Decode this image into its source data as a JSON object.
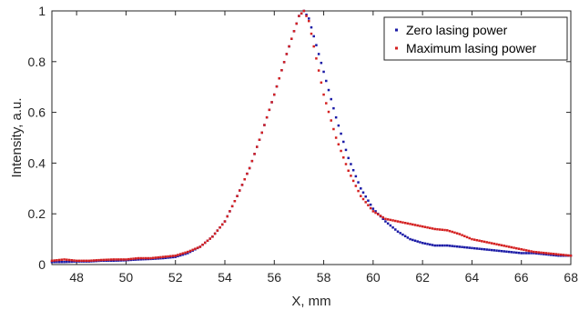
{
  "chart_data": {
    "type": "scatter",
    "title": "",
    "xlabel": "X, mm",
    "ylabel": "Intensity, a.u.",
    "xlim": [
      47,
      68
    ],
    "ylim": [
      0,
      1
    ],
    "xticks": [
      "48",
      "50",
      "52",
      "54",
      "56",
      "58",
      "60",
      "62",
      "64",
      "66",
      "68"
    ],
    "yticks": [
      "0",
      "0.2",
      "0.4",
      "0.6",
      "0.8",
      "1"
    ],
    "grid": false,
    "legend_position": "top-right",
    "series": [
      {
        "name": "Zero lasing power",
        "color": "#1a1aa6",
        "x": [
          47.0,
          47.5,
          48.0,
          48.5,
          49.0,
          49.5,
          50.0,
          50.5,
          51.0,
          51.5,
          52.0,
          52.5,
          53.0,
          53.5,
          54.0,
          54.5,
          55.0,
          55.5,
          56.0,
          56.5,
          56.8,
          57.0,
          57.2,
          57.4,
          57.6,
          58.0,
          58.5,
          59.0,
          59.5,
          60.0,
          60.5,
          61.0,
          61.5,
          62.0,
          62.5,
          63.0,
          63.5,
          64.0,
          64.5,
          65.0,
          65.5,
          66.0,
          66.5,
          67.0,
          67.5,
          68.0
        ],
        "y": [
          0.01,
          0.01,
          0.012,
          0.012,
          0.015,
          0.015,
          0.017,
          0.02,
          0.022,
          0.025,
          0.03,
          0.045,
          0.07,
          0.11,
          0.17,
          0.27,
          0.38,
          0.52,
          0.67,
          0.83,
          0.92,
          0.98,
          1.0,
          0.97,
          0.9,
          0.76,
          0.58,
          0.42,
          0.3,
          0.22,
          0.17,
          0.13,
          0.1,
          0.085,
          0.075,
          0.075,
          0.07,
          0.065,
          0.06,
          0.055,
          0.05,
          0.045,
          0.045,
          0.04,
          0.035,
          0.035
        ]
      },
      {
        "name": "Maximum lasing power",
        "color": "#d42020",
        "x": [
          47.0,
          47.5,
          48.0,
          48.5,
          49.0,
          49.5,
          50.0,
          50.5,
          51.0,
          51.5,
          52.0,
          52.5,
          53.0,
          53.5,
          54.0,
          54.5,
          55.0,
          55.5,
          56.0,
          56.5,
          56.8,
          57.0,
          57.2,
          57.4,
          57.6,
          58.0,
          58.5,
          59.0,
          59.5,
          60.0,
          60.5,
          61.0,
          61.5,
          62.0,
          62.5,
          63.0,
          63.5,
          64.0,
          64.5,
          65.0,
          65.5,
          66.0,
          66.5,
          67.0,
          67.5,
          68.0
        ],
        "y": [
          0.015,
          0.02,
          0.015,
          0.015,
          0.018,
          0.02,
          0.02,
          0.025,
          0.025,
          0.03,
          0.035,
          0.05,
          0.07,
          0.11,
          0.17,
          0.27,
          0.38,
          0.52,
          0.67,
          0.83,
          0.92,
          0.98,
          1.0,
          0.96,
          0.86,
          0.67,
          0.5,
          0.37,
          0.27,
          0.21,
          0.18,
          0.17,
          0.16,
          0.15,
          0.14,
          0.135,
          0.12,
          0.1,
          0.09,
          0.08,
          0.07,
          0.06,
          0.05,
          0.045,
          0.04,
          0.035
        ]
      }
    ]
  }
}
